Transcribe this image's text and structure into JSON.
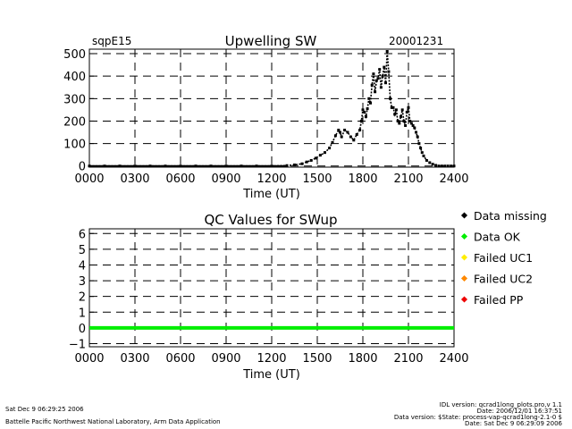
{
  "header": {
    "site": "sqpE15",
    "title": "Upwelling SW",
    "date": "20001231"
  },
  "chart_data": [
    {
      "type": "scatter",
      "title": "Upwelling SW",
      "xlabel": "Time (UT)",
      "ylabel": "",
      "x_ticks": [
        "0000",
        "0300",
        "0600",
        "0900",
        "1200",
        "1500",
        "1800",
        "2100",
        "2400"
      ],
      "y_ticks": [
        "0",
        "100",
        "200",
        "300",
        "400",
        "500"
      ],
      "xlim": [
        0,
        24
      ],
      "ylim": [
        -5,
        520
      ],
      "grid": "dashed",
      "series": [
        {
          "x": [
            0,
            1,
            2,
            3,
            4,
            5,
            6,
            7,
            8,
            9,
            10,
            11,
            12,
            13,
            13.5,
            14,
            14.3,
            14.6,
            14.9,
            15.2,
            15.5,
            15.8,
            16.0,
            16.2,
            16.4,
            16.5,
            16.6,
            16.8,
            17.0,
            17.2,
            17.4,
            17.6,
            17.8,
            17.9,
            18.0,
            18.1,
            18.2,
            18.3,
            18.4,
            18.5,
            18.6,
            18.7,
            18.8,
            18.9,
            19.0,
            19.1,
            19.2,
            19.3,
            19.4,
            19.5,
            19.6,
            19.7,
            19.8,
            19.9,
            20.0,
            20.1,
            20.2,
            20.3,
            20.4,
            20.5,
            20.6,
            20.7,
            20.8,
            20.9,
            21.0,
            21.1,
            21.2,
            21.3,
            21.4,
            21.5,
            21.6,
            21.7,
            21.8,
            21.9,
            22.0,
            22.2,
            22.4,
            22.6,
            22.8,
            23.0,
            23.2,
            23.4,
            23.6,
            23.8,
            24.0
          ],
          "y": [
            0,
            0,
            0,
            0,
            0,
            0,
            0,
            0,
            0,
            0,
            0,
            0,
            0,
            2,
            5,
            10,
            18,
            25,
            35,
            48,
            60,
            80,
            105,
            135,
            160,
            150,
            130,
            160,
            150,
            130,
            115,
            140,
            160,
            200,
            250,
            240,
            220,
            255,
            300,
            280,
            360,
            410,
            330,
            380,
            390,
            430,
            350,
            400,
            440,
            370,
            510,
            420,
            300,
            260,
            260,
            230,
            250,
            200,
            190,
            220,
            250,
            200,
            180,
            240,
            260,
            200,
            190,
            180,
            170,
            150,
            130,
            100,
            80,
            60,
            45,
            25,
            15,
            8,
            3,
            0,
            0,
            0,
            0,
            0,
            0
          ]
        }
      ]
    },
    {
      "type": "line",
      "title": "QC Values for SWup",
      "xlabel": "Time (UT)",
      "ylabel": "",
      "x_ticks": [
        "0000",
        "0300",
        "0600",
        "0900",
        "1200",
        "1500",
        "1800",
        "2100",
        "2400"
      ],
      "y_ticks": [
        "−1",
        "0",
        "1",
        "2",
        "3",
        "4",
        "5",
        "6"
      ],
      "xlim": [
        0,
        24
      ],
      "ylim": [
        -1.2,
        6.3
      ],
      "grid": "dashed",
      "series": [
        {
          "x": [
            0,
            24
          ],
          "y": [
            0,
            0
          ],
          "color": "#00ee00"
        }
      ],
      "legend": {
        "placement": "right",
        "items": [
          {
            "label": "Data missing",
            "color": "#000000"
          },
          {
            "label": "Data OK",
            "color": "#00ee00"
          },
          {
            "label": "Failed UC1",
            "color": "#ffee00"
          },
          {
            "label": "Failed UC2",
            "color": "#ff8800"
          },
          {
            "label": "Failed PP",
            "color": "#ee0000"
          }
        ]
      }
    }
  ],
  "footer": {
    "left1": "Sat Dec  9 06:29:25 2006",
    "left2": "Battelle Pacific Northwest National Laboratory, Arm Data Application",
    "right1": "IDL version: qcrad1long_plots.pro,v 1.1",
    "right2": "Date: 2006/12/01 16:37:51",
    "right3": "Data version: $State: process-vap-qcrad1long-2.1-0 $",
    "right4": "Date: Sat Dec  9 06:29:09 2006"
  }
}
